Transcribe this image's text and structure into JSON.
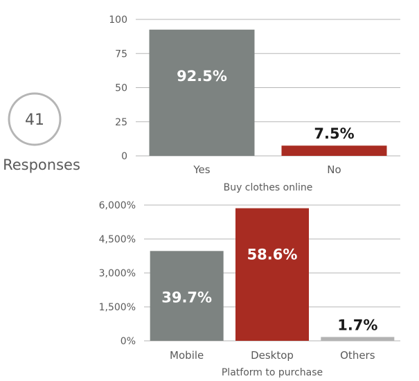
{
  "responses": {
    "count": "41",
    "label": "Responses",
    "ring_color": "#b5b5b5"
  },
  "colors": {
    "gray": "#7d8381",
    "red": "#a82c22",
    "light_gray": "#b3b3b3",
    "text": "#5a5a5a",
    "grid": "#b5b5b5"
  },
  "chart_data": [
    {
      "type": "bar",
      "xlabel": "Buy clothes online",
      "ylabel": "",
      "ylim": [
        0,
        100
      ],
      "yticks": [
        0,
        25,
        50,
        75,
        100
      ],
      "yticklabels": [
        "0",
        "25",
        "50",
        "75",
        "100"
      ],
      "categories": [
        "Yes",
        "No"
      ],
      "values": [
        92.5,
        7.5
      ],
      "data_labels": [
        "92.5%",
        "7.5%"
      ],
      "bar_colors": [
        "#7d8381",
        "#a82c22"
      ],
      "label_positions": [
        "inside",
        "above"
      ],
      "grid": true
    },
    {
      "type": "bar",
      "xlabel": "Platform to purchase",
      "ylabel": "",
      "ylim": [
        0,
        6300
      ],
      "yticks": [
        0,
        1500,
        3000,
        4500,
        6000
      ],
      "yticklabels": [
        "0%",
        "1,500%",
        "3,000%",
        "4,500%",
        "6,000%"
      ],
      "categories": [
        "Mobile",
        "Desktop",
        "Others"
      ],
      "values": [
        3970,
        5860,
        170
      ],
      "data_labels": [
        "39.7%",
        "58.6%",
        "1.7%"
      ],
      "bar_colors": [
        "#7d8381",
        "#a82c22",
        "#b3b3b3"
      ],
      "label_positions": [
        "inside",
        "inside",
        "above"
      ],
      "grid": true
    }
  ]
}
